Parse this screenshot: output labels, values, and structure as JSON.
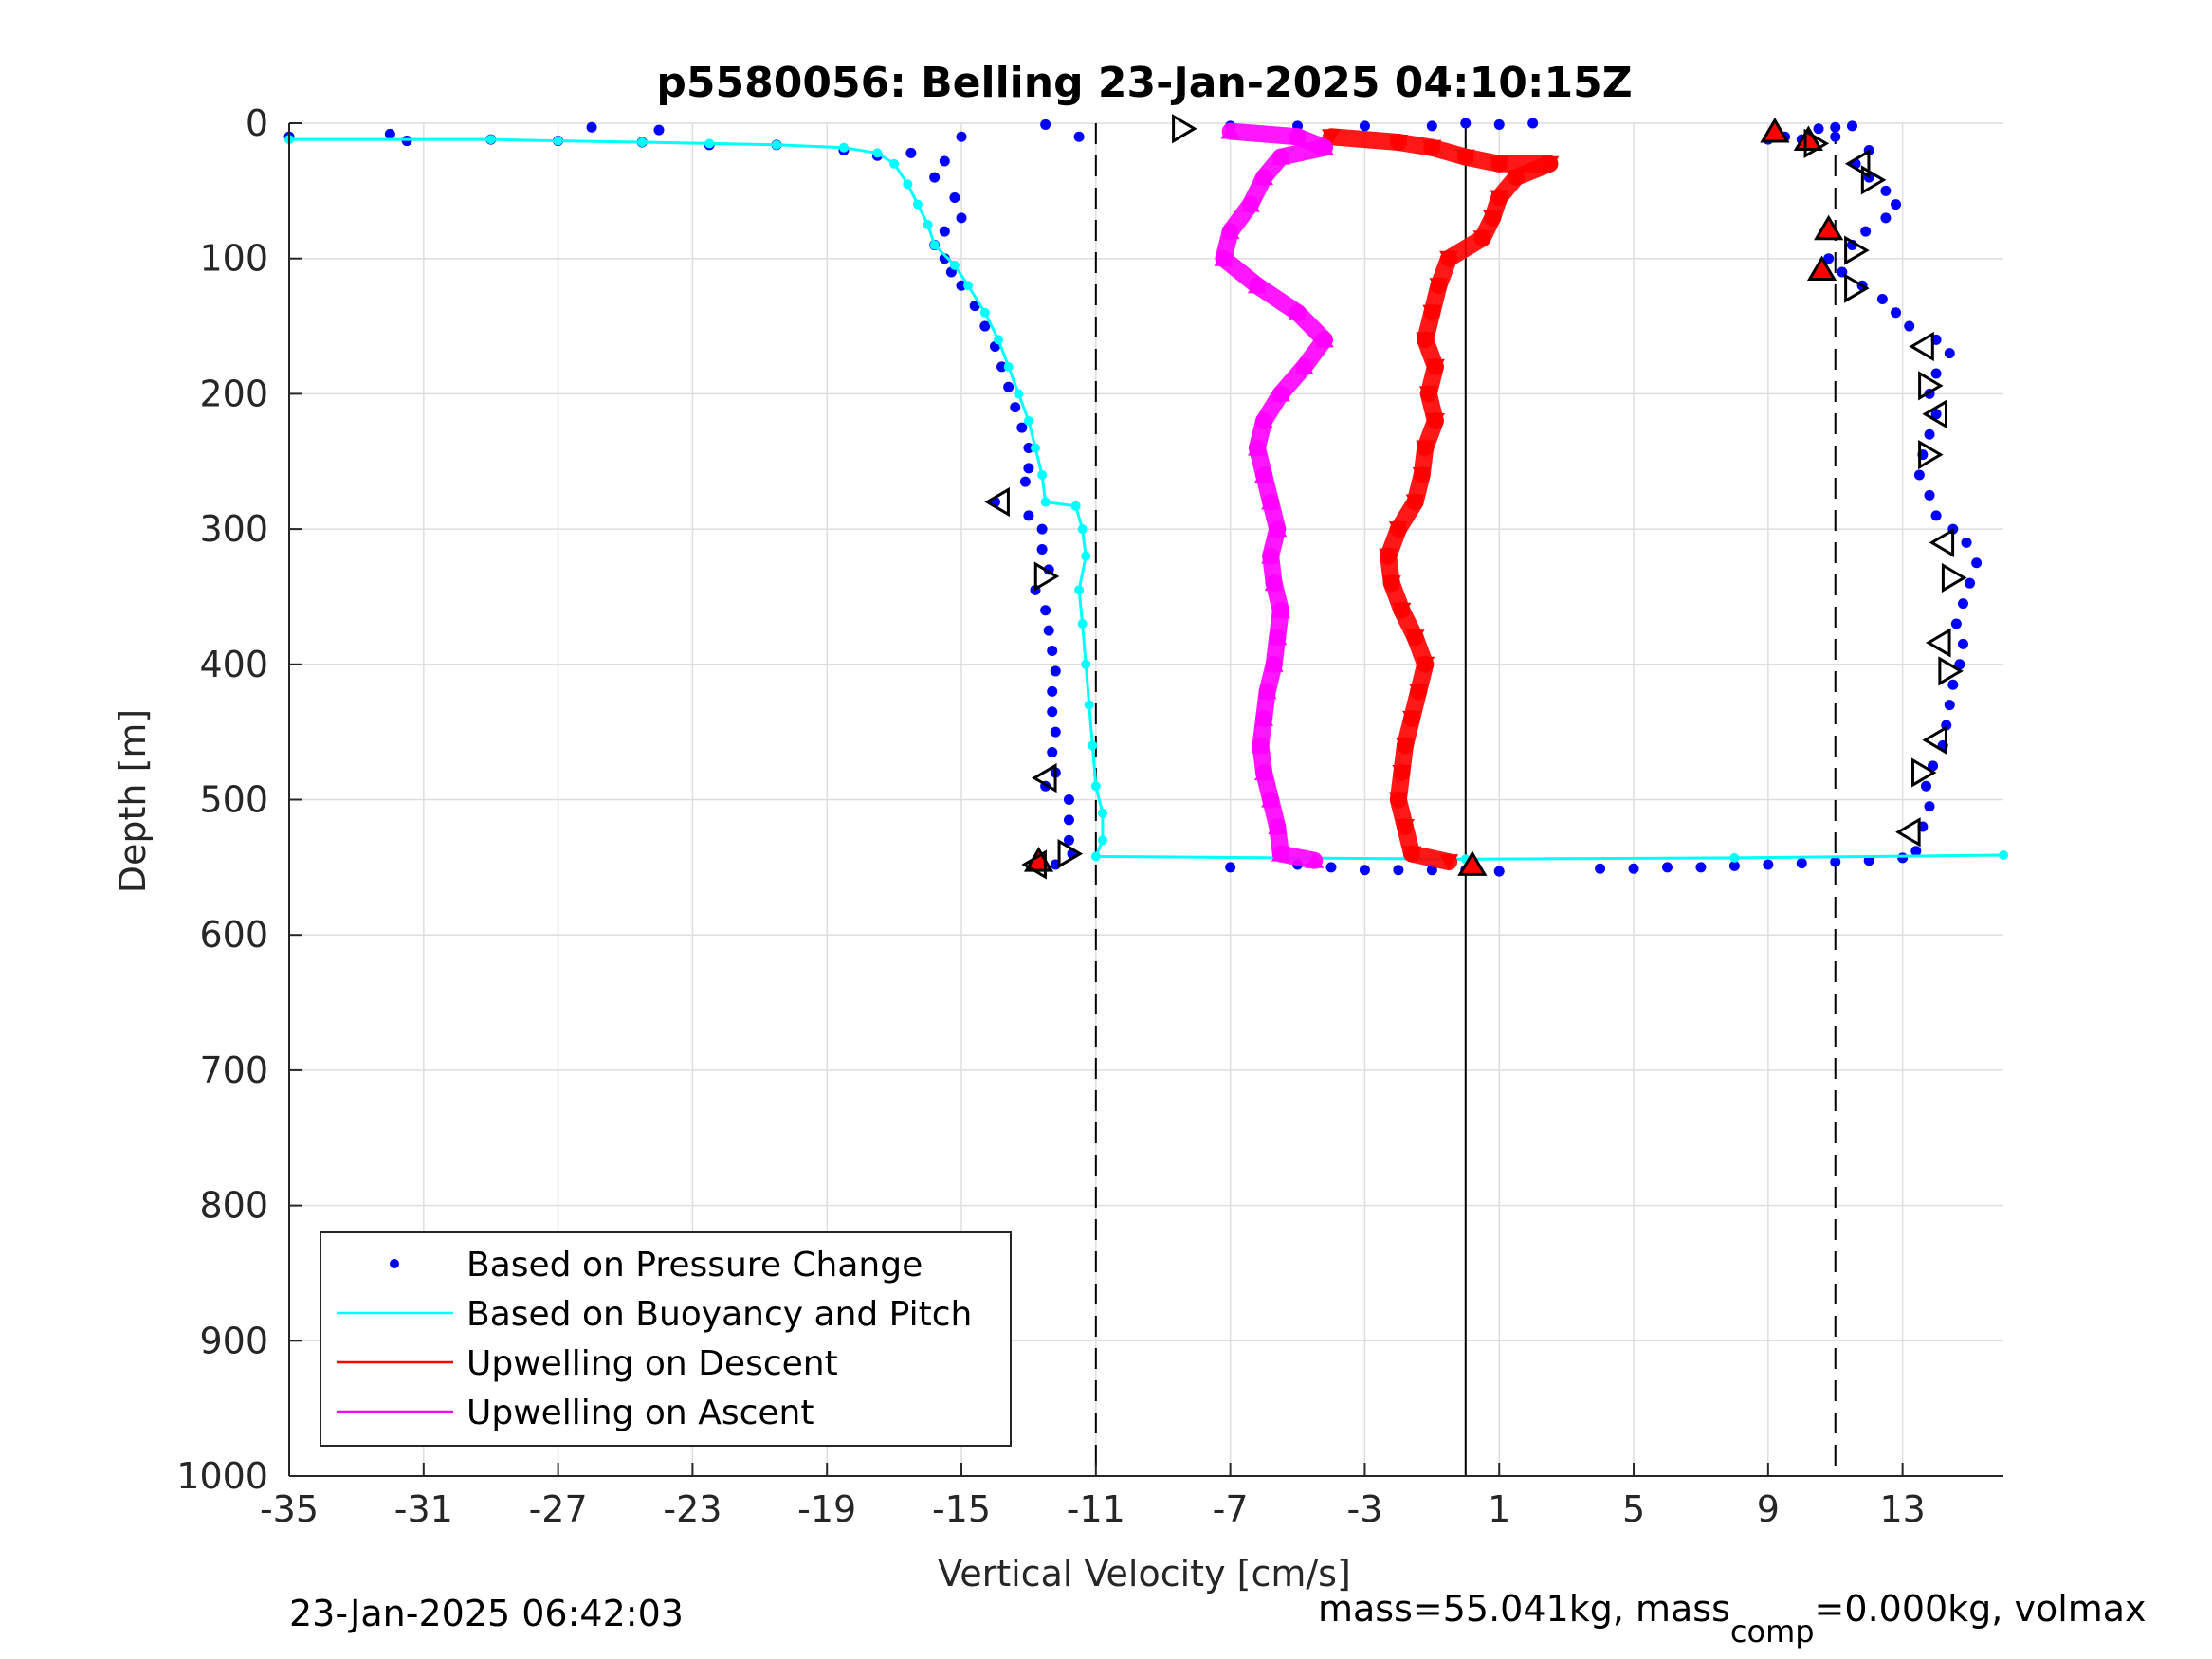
{
  "chart_data": {
    "type": "scatter",
    "title": "p5580056: Belling 23-Jan-2025 04:10:15Z",
    "xlabel": "Vertical Velocity [cm/s]",
    "ylabel": "Depth [m]",
    "xlim": [
      -35,
      16
    ],
    "ylim": [
      0,
      1000
    ],
    "y_reversed": true,
    "grid": true,
    "xticks": [
      -35,
      -31,
      -27,
      -23,
      -19,
      -15,
      -11,
      -7,
      -3,
      1,
      5,
      9,
      13
    ],
    "yticks": [
      0,
      100,
      200,
      300,
      400,
      500,
      600,
      700,
      800,
      900,
      1000
    ],
    "reference_lines": {
      "dashed_x": [
        -11,
        11
      ],
      "solid_x": 0
    },
    "legend_position": "bottom-left",
    "series": [
      {
        "name": "Based on Pressure Change",
        "color": "#0000ff",
        "style": "dots",
        "points": [
          [
            -35,
            10
          ],
          [
            -32,
            8
          ],
          [
            -31.5,
            13
          ],
          [
            -29,
            12
          ],
          [
            -27,
            13
          ],
          [
            -24.5,
            14
          ],
          [
            -24,
            5
          ],
          [
            -22.5,
            16
          ],
          [
            -20.5,
            16
          ],
          [
            -18.5,
            20
          ],
          [
            -17.5,
            24
          ],
          [
            -16.5,
            22
          ],
          [
            -15.5,
            28
          ],
          [
            -15.8,
            40
          ],
          [
            -15.2,
            55
          ],
          [
            -15.0,
            70
          ],
          [
            -15.5,
            80
          ],
          [
            -15.8,
            90
          ],
          [
            -15.5,
            100
          ],
          [
            -15.3,
            110
          ],
          [
            -15.0,
            120
          ],
          [
            -14.6,
            135
          ],
          [
            -14.3,
            150
          ],
          [
            -14.0,
            165
          ],
          [
            -13.8,
            180
          ],
          [
            -13.6,
            195
          ],
          [
            -13.4,
            210
          ],
          [
            -13.2,
            225
          ],
          [
            -13.0,
            240
          ],
          [
            -13.0,
            255
          ],
          [
            -13.1,
            265
          ],
          [
            -14.0,
            280
          ],
          [
            -13.0,
            290
          ],
          [
            -12.6,
            300
          ],
          [
            -12.6,
            315
          ],
          [
            -12.4,
            330
          ],
          [
            -12.8,
            345
          ],
          [
            -12.5,
            360
          ],
          [
            -12.4,
            375
          ],
          [
            -12.3,
            390
          ],
          [
            -12.2,
            405
          ],
          [
            -12.3,
            420
          ],
          [
            -12.3,
            435
          ],
          [
            -12.2,
            450
          ],
          [
            -12.3,
            465
          ],
          [
            -12.2,
            480
          ],
          [
            -12.5,
            490
          ],
          [
            -11.8,
            500
          ],
          [
            -11.8,
            515
          ],
          [
            -11.8,
            530
          ],
          [
            -11.7,
            540
          ],
          [
            -12.2,
            548
          ],
          [
            -7,
            550
          ],
          [
            -5,
            548
          ],
          [
            -4,
            550
          ],
          [
            -3,
            552
          ],
          [
            -2,
            552
          ],
          [
            -1,
            552
          ],
          [
            0,
            552
          ],
          [
            1,
            553
          ],
          [
            4,
            551
          ],
          [
            5,
            551
          ],
          [
            6,
            550
          ],
          [
            7,
            550
          ],
          [
            8,
            549
          ],
          [
            9,
            548
          ],
          [
            10,
            547
          ],
          [
            11,
            546
          ],
          [
            12,
            545
          ],
          [
            13,
            543
          ],
          [
            13.4,
            538
          ],
          [
            13.6,
            520
          ],
          [
            13.8,
            505
          ],
          [
            13.7,
            490
          ],
          [
            13.9,
            475
          ],
          [
            14.2,
            460
          ],
          [
            14.3,
            445
          ],
          [
            14.4,
            430
          ],
          [
            14.5,
            415
          ],
          [
            14.7,
            400
          ],
          [
            14.8,
            385
          ],
          [
            14.6,
            370
          ],
          [
            14.8,
            355
          ],
          [
            15.0,
            340
          ],
          [
            15.2,
            325
          ],
          [
            14.9,
            310
          ],
          [
            14.5,
            300
          ],
          [
            14.0,
            290
          ],
          [
            13.8,
            275
          ],
          [
            13.5,
            260
          ],
          [
            13.6,
            245
          ],
          [
            13.8,
            230
          ],
          [
            14.0,
            215
          ],
          [
            13.8,
            200
          ],
          [
            14.0,
            185
          ],
          [
            14.4,
            170
          ],
          [
            14.0,
            160
          ],
          [
            13.2,
            150
          ],
          [
            12.8,
            140
          ],
          [
            12.4,
            130
          ],
          [
            11.8,
            120
          ],
          [
            11.2,
            110
          ],
          [
            10.8,
            100
          ],
          [
            11.5,
            90
          ],
          [
            11.9,
            80
          ],
          [
            12.5,
            70
          ],
          [
            12.8,
            60
          ],
          [
            12.5,
            50
          ],
          [
            12.0,
            40
          ],
          [
            11.6,
            30
          ],
          [
            12.0,
            20
          ],
          [
            11.0,
            10
          ],
          [
            10.0,
            12
          ],
          [
            9.5,
            10
          ],
          [
            9.0,
            12
          ],
          [
            10.5,
            4
          ],
          [
            11.0,
            3
          ],
          [
            11.5,
            2
          ],
          [
            -15.0,
            10
          ],
          [
            -11.5,
            10
          ],
          [
            -7,
            2
          ],
          [
            -5,
            2
          ],
          [
            -3,
            2
          ],
          [
            -1,
            2
          ],
          [
            0,
            0
          ],
          [
            1,
            1
          ],
          [
            2,
            0
          ],
          [
            -26,
            3
          ],
          [
            -12.5,
            1
          ]
        ]
      },
      {
        "name": "Based on Buoyancy and Pitch",
        "color": "#00ffff",
        "style": "line",
        "points": [
          [
            -35,
            12
          ],
          [
            -29,
            12
          ],
          [
            -27,
            13
          ],
          [
            -24.5,
            14
          ],
          [
            -22.5,
            15
          ],
          [
            -20.5,
            16
          ],
          [
            -18.5,
            18
          ],
          [
            -17.5,
            22
          ],
          [
            -17.0,
            30
          ],
          [
            -16.6,
            45
          ],
          [
            -16.3,
            60
          ],
          [
            -16.0,
            75
          ],
          [
            -15.8,
            90
          ],
          [
            -15.2,
            105
          ],
          [
            -14.8,
            120
          ],
          [
            -14.3,
            140
          ],
          [
            -13.9,
            160
          ],
          [
            -13.6,
            180
          ],
          [
            -13.3,
            200
          ],
          [
            -13.0,
            220
          ],
          [
            -12.8,
            240
          ],
          [
            -12.6,
            260
          ],
          [
            -12.5,
            280
          ],
          [
            -11.6,
            283
          ],
          [
            -11.4,
            300
          ],
          [
            -11.3,
            320
          ],
          [
            -11.5,
            345
          ],
          [
            -11.4,
            370
          ],
          [
            -11.3,
            400
          ],
          [
            -11.2,
            430
          ],
          [
            -11.1,
            460
          ],
          [
            -11.0,
            490
          ],
          [
            -10.8,
            510
          ],
          [
            -10.8,
            530
          ],
          [
            -11.0,
            542
          ],
          [
            0,
            544
          ],
          [
            8,
            543
          ],
          [
            16,
            541
          ]
        ]
      },
      {
        "name": "Upwelling on Descent",
        "color": "#ff0000",
        "style": "triangle-down",
        "points": [
          [
            -4,
            10
          ],
          [
            -2,
            14
          ],
          [
            -1,
            18
          ],
          [
            0,
            25
          ],
          [
            1,
            30
          ],
          [
            2.5,
            30
          ],
          [
            1.5,
            40
          ],
          [
            1,
            55
          ],
          [
            0.8,
            70
          ],
          [
            0.5,
            85
          ],
          [
            -0.5,
            100
          ],
          [
            -0.8,
            120
          ],
          [
            -1.0,
            140
          ],
          [
            -1.2,
            160
          ],
          [
            -0.9,
            180
          ],
          [
            -1.1,
            200
          ],
          [
            -0.9,
            220
          ],
          [
            -1.2,
            240
          ],
          [
            -1.3,
            260
          ],
          [
            -1.5,
            280
          ],
          [
            -2.0,
            300
          ],
          [
            -2.3,
            320
          ],
          [
            -2.2,
            340
          ],
          [
            -1.9,
            360
          ],
          [
            -1.5,
            380
          ],
          [
            -1.2,
            400
          ],
          [
            -1.4,
            420
          ],
          [
            -1.6,
            440
          ],
          [
            -1.8,
            460
          ],
          [
            -1.9,
            480
          ],
          [
            -2.0,
            500
          ],
          [
            -1.8,
            520
          ],
          [
            -1.6,
            540
          ],
          [
            -0.5,
            546
          ]
        ]
      },
      {
        "name": "Upwelling on Ascent",
        "color": "#ff00ff",
        "style": "triangle-up",
        "points": [
          [
            -4.5,
            545
          ],
          [
            -5.5,
            540
          ],
          [
            -5.6,
            520
          ],
          [
            -5.8,
            500
          ],
          [
            -6.0,
            480
          ],
          [
            -6.1,
            460
          ],
          [
            -6.0,
            440
          ],
          [
            -5.9,
            420
          ],
          [
            -5.7,
            400
          ],
          [
            -5.6,
            380
          ],
          [
            -5.5,
            360
          ],
          [
            -5.7,
            340
          ],
          [
            -5.8,
            320
          ],
          [
            -5.6,
            300
          ],
          [
            -5.8,
            280
          ],
          [
            -6.0,
            260
          ],
          [
            -6.2,
            240
          ],
          [
            -6.0,
            220
          ],
          [
            -5.5,
            200
          ],
          [
            -4.8,
            180
          ],
          [
            -4.2,
            160
          ],
          [
            -5.0,
            140
          ],
          [
            -6.2,
            120
          ],
          [
            -7.2,
            100
          ],
          [
            -7.0,
            80
          ],
          [
            -6.4,
            60
          ],
          [
            -6.0,
            40
          ],
          [
            -5.5,
            25
          ],
          [
            -4.2,
            18
          ],
          [
            -5.0,
            10
          ],
          [
            -7.0,
            6
          ]
        ]
      }
    ],
    "markers": [
      {
        "type": "up-red",
        "x": 9.2,
        "y": 6
      },
      {
        "type": "up-red",
        "x": 10.2,
        "y": 12
      },
      {
        "type": "up-red",
        "x": 10.8,
        "y": 78
      },
      {
        "type": "up-red",
        "x": 10.6,
        "y": 108
      },
      {
        "type": "up-red",
        "x": -12.7,
        "y": 545
      },
      {
        "type": "up-red",
        "x": 0.2,
        "y": 548
      },
      {
        "type": "right-open",
        "x": -8.4,
        "y": 4
      },
      {
        "type": "right-open",
        "x": 10.4,
        "y": 15
      },
      {
        "type": "right-open",
        "x": 12.1,
        "y": 42
      },
      {
        "type": "right-open",
        "x": 11.6,
        "y": 94
      },
      {
        "type": "right-open",
        "x": 11.6,
        "y": 122
      },
      {
        "type": "right-open",
        "x": 13.8,
        "y": 194
      },
      {
        "type": "right-open",
        "x": 13.8,
        "y": 245
      },
      {
        "type": "right-open",
        "x": 14.5,
        "y": 336
      },
      {
        "type": "right-open",
        "x": 14.4,
        "y": 405
      },
      {
        "type": "right-open",
        "x": 13.6,
        "y": 480
      },
      {
        "type": "right-open",
        "x": -11.8,
        "y": 540
      },
      {
        "type": "right-open",
        "x": -12.5,
        "y": 335
      },
      {
        "type": "left-open",
        "x": 11.7,
        "y": 30
      },
      {
        "type": "left-open",
        "x": 13.6,
        "y": 165
      },
      {
        "type": "left-open",
        "x": 14.0,
        "y": 215
      },
      {
        "type": "left-open",
        "x": 14.2,
        "y": 310
      },
      {
        "type": "left-open",
        "x": 14.1,
        "y": 384
      },
      {
        "type": "left-open",
        "x": 14.0,
        "y": 456
      },
      {
        "type": "left-open",
        "x": 13.2,
        "y": 524
      },
      {
        "type": "left-open",
        "x": -13.9,
        "y": 280
      },
      {
        "type": "left-open",
        "x": -12.5,
        "y": 484
      },
      {
        "type": "left-open",
        "x": -12.8,
        "y": 548
      }
    ]
  },
  "footer": {
    "timestamp": "23-Jan-2025 06:42:03",
    "mass_text": "mass=55.041kg, mass",
    "mass_sub": "comp",
    "mass_tail": "=0.000kg, volmax"
  }
}
